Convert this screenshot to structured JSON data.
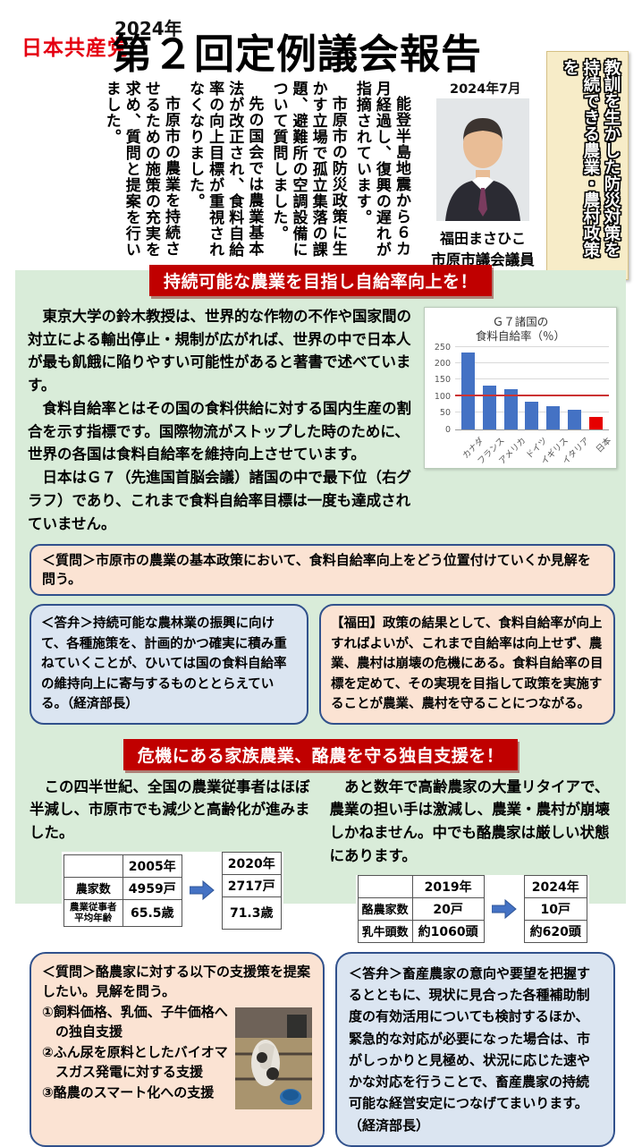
{
  "header": {
    "party_logo": "日本共産党",
    "year": "2024年",
    "title": "第２回定例議会報告",
    "issue_date": "2024年7月",
    "intro_paragraphs": [
      "能登半島地震から６カ月経過し、復興の遅れが指摘されています。",
      "市原市の防災政策に生かす立場で孤立集落の課題、避難所の空調設備について質問しました。",
      "先の国会では農業基本法が改正され、食料自給率の向上目標が重視されなくなりました。",
      "市原市の農業を持続させるための施策の充実を求め、質問と提案を行いました。"
    ],
    "photo_caption_name": "福田まさひこ",
    "photo_caption_title": "市原市議会議員",
    "side_banner": [
      "教訓を生かした防災対策を",
      "持続できる農業・農村政策を"
    ]
  },
  "section1": {
    "banner": "持続可能な農業を目指し自給率向上を！",
    "paragraphs": [
      "東京大学の鈴木教授は、世界的な作物の不作や国家間の対立による輸出停止・規制が広がれば、世界の中で日本人が最も飢餓に陥りやすい可能性があると著書で述べています。",
      "食料自給率とはその国の食料供給に対する国内生産の割合を示す指標です。国際物流がストップした時のために、世界の各国は食料自給率を維持向上させています。",
      "日本はＧ７（先進国首脳会議）諸国の中で最下位（右グラフ）であり、これまで食料自給率目標は一度も達成されていません。"
    ],
    "question": "＜質問＞市原市の農業の基本政策において、食料自給率向上をどう位置付けていくか見解を問う。",
    "answer": "＜答弁＞持続可能な農林業の振興に向けて、各種施策を、計画的かつ確実に積み重ねていくことが、ひいては国の食料自給率の維持向上に寄与するものととらえている。（経済部長）",
    "fukuda": "【福田】政策の結果として、食料自給率が向上すればよいが、これまで自給率は向上せず、農業、農村は崩壊の危機にある。食料自給率の目標を定めて、その実現を目指して政策を実施することが農業、農村を守ることにつながる。"
  },
  "chart_data": {
    "type": "bar",
    "title": "Ｇ７諸国の\n食料自給率（％）",
    "categories": [
      "カナダ",
      "フランス",
      "アメリカ",
      "ドイツ",
      "イギリス",
      "イタリア",
      "日本"
    ],
    "values": [
      233,
      131,
      121,
      84,
      70,
      58,
      38
    ],
    "ylim": [
      0,
      250
    ],
    "yticks": [
      0,
      50,
      100,
      150,
      200,
      250
    ],
    "refline": 100,
    "grid": true,
    "legend": false,
    "bar_color": "#4472c4",
    "highlight": "日本",
    "highlight_color": "#e60000",
    "refline_color": "#cc3333"
  },
  "section2": {
    "banner": "危機にある家族農業、酪農を守る独自支援を！",
    "left_paragraph": "この四半世紀、全国の農業従事者はほぼ半減し、市原市でも減少と高齢化が進みました。",
    "right_paragraph": "あと数年で高齢農家の大量リタイアで、農業の担い手は激減し、農業・農村が崩壊しかねません。中でも酪農家は厳しい状態にあります。",
    "table1": {
      "col_years": [
        "2005年",
        "2020年"
      ],
      "rows": [
        [
          "農家数",
          "4959戸",
          "2717戸"
        ],
        [
          "農業従事者平均年齢",
          "65.5歳",
          "71.3歳"
        ]
      ]
    },
    "table2": {
      "col_years": [
        "2019年",
        "2024年"
      ],
      "rows": [
        [
          "酪農家数",
          "20戸",
          "10戸"
        ],
        [
          "乳牛頭数",
          "約1060頭",
          "約620頭"
        ]
      ]
    },
    "question_lines": [
      "＜質問＞酪農家に対する以下の支援策を提案したい。見解を問う。",
      "①飼料価格、乳価、子牛価格への独自支援",
      "②ふん尿を原料としたバイオマスガス発電に対する支援",
      "③酪農のスマート化への支援"
    ],
    "answer": "＜答弁＞畜産農家の意向や要望を把握するとともに、現状に見合った各種補助制度の有効活用についても検討するほか、緊急的な対応が必要になった場合は、市がしっかりと見極め、状況に応じた速やかな対応を行うことで、畜産農家の持続可能な経営安定につなげてまいります。（経済部長）"
  },
  "colors": {
    "accent_red": "#c00000",
    "logo_red": "#e50012",
    "panel_green": "#d9ecd9",
    "box_peach": "#fbe3d3",
    "box_blue": "#dbe5f1",
    "box_border": "#31518c",
    "banner_yellow": "#f7ecc8"
  }
}
